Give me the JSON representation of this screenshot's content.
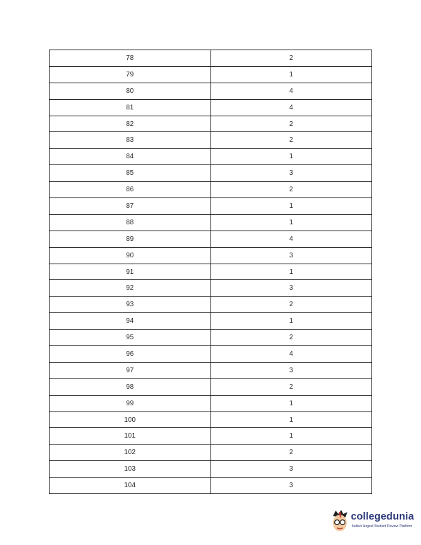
{
  "table": {
    "rows": [
      [
        "78",
        "2"
      ],
      [
        "79",
        "1"
      ],
      [
        "80",
        "4"
      ],
      [
        "81",
        "4"
      ],
      [
        "82",
        "2"
      ],
      [
        "83",
        "2"
      ],
      [
        "84",
        "1"
      ],
      [
        "85",
        "3"
      ],
      [
        "86",
        "2"
      ],
      [
        "87",
        "1"
      ],
      [
        "88",
        "1"
      ],
      [
        "89",
        "4"
      ],
      [
        "90",
        "3"
      ],
      [
        "91",
        "1"
      ],
      [
        "92",
        "3"
      ],
      [
        "93",
        "2"
      ],
      [
        "94",
        "1"
      ],
      [
        "95",
        "2"
      ],
      [
        "96",
        "4"
      ],
      [
        "97",
        "3"
      ],
      [
        "98",
        "2"
      ],
      [
        "99",
        "1"
      ],
      [
        "100",
        "1"
      ],
      [
        "101",
        "1"
      ],
      [
        "102",
        "2"
      ],
      [
        "103",
        "3"
      ],
      [
        "104",
        "3"
      ]
    ]
  },
  "logo": {
    "brand": "collegedunia",
    "tagline": "India's largest Student Review Platform",
    "color": "#2e3b7a"
  }
}
